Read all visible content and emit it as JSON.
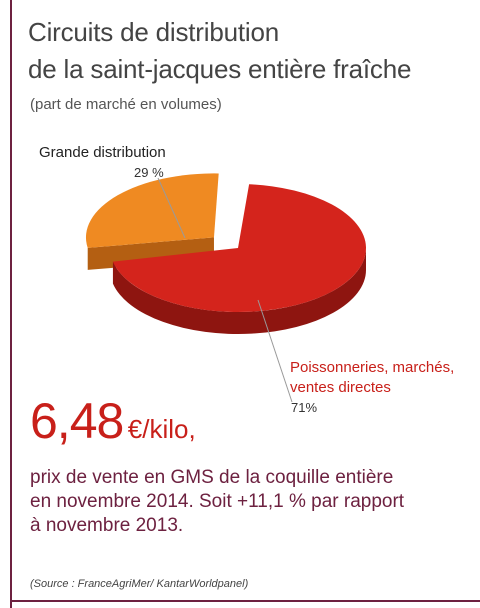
{
  "header": {
    "title_line1": "Circuits de distribution",
    "title_line2": "de la saint-jacques entière fraîche",
    "subtitle": "(part de marché en volumes)"
  },
  "chart_data": {
    "type": "pie",
    "title": "Circuits de distribution de la saint-jacques entière fraîche",
    "subtitle": "(part de marché en volumes)",
    "slices": [
      {
        "label": "Grande distribution",
        "value": 29,
        "value_label": "29 %",
        "color": "#ef8a22",
        "exploded": true
      },
      {
        "label": "Poissonneries, marchés, ventes directes",
        "value": 71,
        "value_label": "71%",
        "color": "#d4241c"
      }
    ],
    "style": "3d-exploded"
  },
  "labels": {
    "grande_name": "Grande distribution",
    "grande_pct": "29 %",
    "poisson_line1": "Poissonneries, marchés,",
    "poisson_line2": "ventes directes",
    "poisson_pct": "71%"
  },
  "price": {
    "value": "6,48",
    "unit": "€/kilo,"
  },
  "description": {
    "line1": "prix de vente en GMS de la coquille entière",
    "line2": "en novembre 2014. Soit +11,1 % par rapport",
    "line3": "à novembre 2013."
  },
  "source": "(Source : FranceAgriMer/ KantarWorldpanel)",
  "colors": {
    "accent": "#6d2140",
    "red": "#d4241c",
    "red_dark": "#8e1510",
    "orange": "#ef8a22",
    "orange_dark": "#b45f12"
  }
}
